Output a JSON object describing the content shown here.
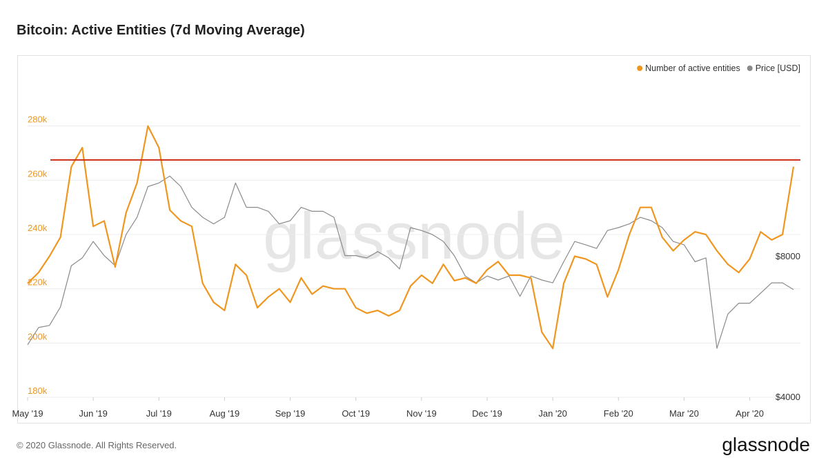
{
  "chart_data": {
    "type": "line",
    "title": "Bitcoin: Active Entities (7d Moving Average)",
    "categories": [
      "May '19",
      null,
      null,
      null,
      null,
      null,
      "Jun '19",
      null,
      null,
      null,
      null,
      null,
      "Jul '19",
      null,
      null,
      null,
      null,
      null,
      "Aug '19",
      null,
      null,
      null,
      null,
      null,
      "Sep '19",
      null,
      null,
      null,
      null,
      null,
      "Oct '19",
      null,
      null,
      null,
      null,
      null,
      "Nov '19",
      null,
      null,
      null,
      null,
      null,
      "Dec '19",
      null,
      null,
      null,
      null,
      null,
      "Jan '20",
      null,
      null,
      null,
      null,
      null,
      "Feb '20",
      null,
      null,
      null,
      null,
      null,
      "Mar '20",
      null,
      null,
      null,
      null,
      null,
      "Apr '20",
      null,
      null,
      null,
      null
    ],
    "series": [
      {
        "name": "Number of active entities",
        "color": "#f0961e",
        "axis": "y",
        "values": [
          222000,
          226000,
          232000,
          239000,
          265000,
          272000,
          243000,
          245000,
          228000,
          248000,
          259000,
          280000,
          272000,
          249000,
          245000,
          243000,
          222000,
          215000,
          212000,
          229000,
          225000,
          213000,
          217000,
          220000,
          215000,
          224000,
          218000,
          221000,
          220000,
          220000,
          213000,
          211000,
          212000,
          210000,
          212000,
          221000,
          225000,
          222000,
          229000,
          223000,
          224000,
          222000,
          227000,
          230000,
          225000,
          225000,
          224000,
          204000,
          198000,
          222000,
          232000,
          231000,
          229000,
          217000,
          227000,
          240000,
          250000,
          250000,
          239000,
          234000,
          238000,
          241000,
          240000,
          234000,
          229000,
          226000,
          231000,
          241000,
          238000,
          240000,
          265000
        ]
      },
      {
        "name": "Price [USD]",
        "color": "#8a8a8a",
        "axis": "y2",
        "values": [
          5180,
          5640,
          5700,
          6240,
          7650,
          7950,
          8620,
          8040,
          7650,
          8920,
          9710,
          11300,
          11500,
          11900,
          11300,
          10200,
          9710,
          9400,
          9710,
          11500,
          10200,
          10200,
          10000,
          9400,
          9550,
          10200,
          10000,
          10000,
          9710,
          8040,
          8040,
          7950,
          8200,
          7950,
          7530,
          9230,
          9100,
          8920,
          8620,
          8040,
          7270,
          7030,
          7270,
          7130,
          7270,
          6580,
          7270,
          7130,
          7030,
          7800,
          8620,
          8480,
          8330,
          9100,
          9230,
          9400,
          9710,
          9550,
          9230,
          8620,
          8480,
          7800,
          7950,
          5090,
          6030,
          6360,
          6360,
          6680,
          7030,
          7030,
          6800
        ]
      }
    ],
    "ylim": [
      180000,
      300000
    ],
    "yticks": [
      {
        "value": 180000,
        "label": "180k"
      },
      {
        "value": 200000,
        "label": "200k"
      },
      {
        "value": 220000,
        "label": "220k"
      },
      {
        "value": 240000,
        "label": "240k"
      },
      {
        "value": 260000,
        "label": "260k"
      },
      {
        "value": 280000,
        "label": "280k"
      }
    ],
    "y2lim": [
      4000,
      19900
    ],
    "y2log": true,
    "y2ticks": [
      {
        "value": 4000,
        "label": "$4000"
      },
      {
        "value": 8000,
        "label": "$8000"
      }
    ],
    "reference_line": {
      "value": 267500,
      "color": "#cc2a14"
    },
    "grid": true,
    "legend": "top-right",
    "watermark": "glassnode",
    "copyright": "© 2020 Glassnode. All Rights Reserved.",
    "logo": "glassnode"
  }
}
